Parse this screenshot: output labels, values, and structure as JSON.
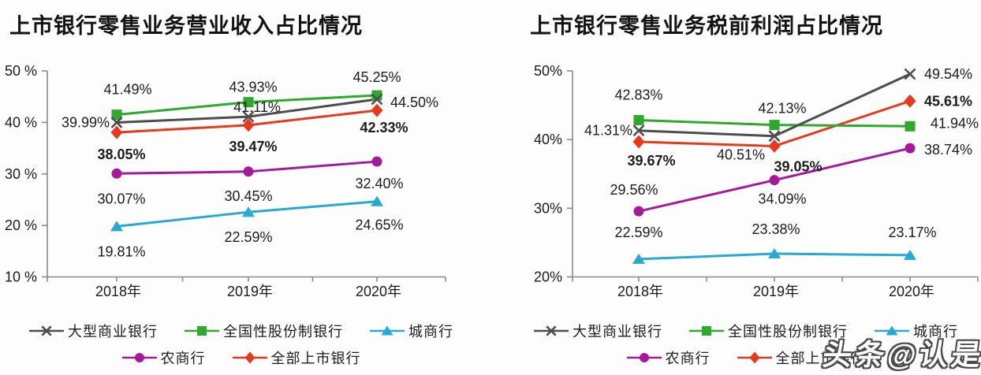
{
  "watermark": {
    "text": "头条@认是"
  },
  "chart_data": [
    {
      "type": "line",
      "title": "上市银行零售业务营业收入占比情况",
      "categories": [
        "2018年",
        "2019年",
        "2020年"
      ],
      "y_tick_labels": [
        "50 %",
        "40 %",
        "30 %",
        "20 %",
        "10 %"
      ],
      "ylim": [
        10,
        50
      ],
      "grid": false,
      "legend_position": "bottom",
      "series": [
        {
          "name": "大型商业银行",
          "marker": "x",
          "color": "#4D4D4D",
          "values": [
            39.99,
            41.11,
            44.5
          ],
          "labels": [
            "39.99%",
            "41.11%",
            "44.50%"
          ],
          "bold": false
        },
        {
          "name": "全国性股份制银行",
          "marker": "square",
          "color": "#2FA82D",
          "values": [
            41.49,
            43.93,
            45.25
          ],
          "labels": [
            "41.49%",
            "43.93%",
            "45.25%"
          ],
          "bold": false
        },
        {
          "name": "城商行",
          "marker": "triangle",
          "color": "#29A9CF",
          "values": [
            19.81,
            22.59,
            24.65
          ],
          "labels": [
            "19.81%",
            "22.59%",
            "24.65%"
          ],
          "bold": false
        },
        {
          "name": "农商行",
          "marker": "circle",
          "color": "#A31B9B",
          "values": [
            30.07,
            30.45,
            32.4
          ],
          "labels": [
            "30.07%",
            "30.45%",
            "32.40%"
          ],
          "bold": false
        },
        {
          "name": "全部上市银行",
          "marker": "diamond",
          "color": "#E63A1F",
          "values": [
            38.05,
            39.47,
            42.33
          ],
          "labels": [
            "38.05%",
            "39.47%",
            "42.33%"
          ],
          "bold": true
        }
      ]
    },
    {
      "type": "line",
      "title": "上市银行零售业务税前利润占比情况",
      "categories": [
        "2018年",
        "2019年",
        "2020年"
      ],
      "y_tick_labels": [
        "50%",
        "40%",
        "30%",
        "20%"
      ],
      "ylim": [
        20,
        50
      ],
      "grid": false,
      "legend_position": "bottom",
      "series": [
        {
          "name": "大型商业银行",
          "marker": "x",
          "color": "#4D4D4D",
          "values": [
            41.31,
            40.51,
            49.54
          ],
          "labels": [
            "41.31%",
            "40.51%",
            "49.54%"
          ],
          "bold": false
        },
        {
          "name": "全国性股份制银行",
          "marker": "square",
          "color": "#2FA82D",
          "values": [
            42.83,
            42.13,
            41.94
          ],
          "labels": [
            "42.83%",
            "42.13%",
            "41.94%"
          ],
          "bold": false
        },
        {
          "name": "城商行",
          "marker": "triangle",
          "color": "#29A9CF",
          "values": [
            22.59,
            23.38,
            23.17
          ],
          "labels": [
            "22.59%",
            "23.38%",
            "23.17%"
          ],
          "bold": false
        },
        {
          "name": "农商行",
          "marker": "circle",
          "color": "#A31B9B",
          "values": [
            29.56,
            34.09,
            38.74
          ],
          "labels": [
            "29.56%",
            "34.09%",
            "38.74%"
          ],
          "bold": false
        },
        {
          "name": "全部上市银行",
          "marker": "diamond",
          "color": "#E63A1F",
          "values": [
            39.67,
            39.05,
            45.61
          ],
          "labels": [
            "39.67%",
            "39.05%",
            "45.61%"
          ],
          "bold": true
        }
      ]
    }
  ]
}
